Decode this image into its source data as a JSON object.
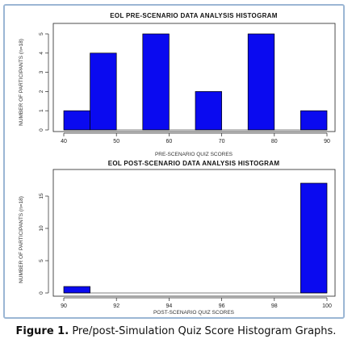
{
  "caption": {
    "label": "Figure 1.",
    "text": "Pre/post-Simulation Quiz Score Histogram Graphs."
  },
  "chart_data": [
    {
      "type": "bar",
      "title": "EOL PRE-SCENARIO DATA ANALYSIS HISTOGRAM",
      "xlabel": "PRE-SCENARIO QUIZ SCORES",
      "ylabel": "NUMBER OF PARTICIPANTS (n=18)",
      "xlim": [
        40,
        90
      ],
      "ylim": [
        0,
        5
      ],
      "x_ticks": [
        40,
        50,
        60,
        70,
        80,
        90
      ],
      "y_ticks": [
        0,
        1,
        2,
        3,
        4,
        5
      ],
      "bins": [
        {
          "from": 40,
          "to": 45,
          "count": 1
        },
        {
          "from": 45,
          "to": 50,
          "count": 4
        },
        {
          "from": 55,
          "to": 60,
          "count": 5
        },
        {
          "from": 65,
          "to": 70,
          "count": 2
        },
        {
          "from": 75,
          "to": 80,
          "count": 5
        },
        {
          "from": 85,
          "to": 90,
          "count": 1
        }
      ],
      "bar_color": "#0a0af0",
      "grid": false
    },
    {
      "type": "bar",
      "title": "EOL POST-SCENARIO DATA ANALYSIS HISTOGRAM",
      "xlabel": "POST-SCENARIO QUIZ SCORES",
      "ylabel": "NUMBER OF PARTICIPANTS (n=18)",
      "xlim": [
        90,
        100
      ],
      "ylim": [
        0,
        17
      ],
      "x_ticks": [
        90,
        92,
        94,
        96,
        98,
        100
      ],
      "y_ticks": [
        0,
        5,
        10,
        15
      ],
      "bins": [
        {
          "from": 90,
          "to": 91,
          "count": 1
        },
        {
          "from": 91,
          "to": 92,
          "count": 0
        },
        {
          "from": 92,
          "to": 93,
          "count": 0
        },
        {
          "from": 93,
          "to": 94,
          "count": 0
        },
        {
          "from": 94,
          "to": 95,
          "count": 0
        },
        {
          "from": 95,
          "to": 96,
          "count": 0
        },
        {
          "from": 96,
          "to": 97,
          "count": 0
        },
        {
          "from": 97,
          "to": 98,
          "count": 0
        },
        {
          "from": 98,
          "to": 99,
          "count": 0
        },
        {
          "from": 99,
          "to": 100,
          "count": 17
        }
      ],
      "bar_color": "#0a0af0",
      "grid": false
    }
  ]
}
